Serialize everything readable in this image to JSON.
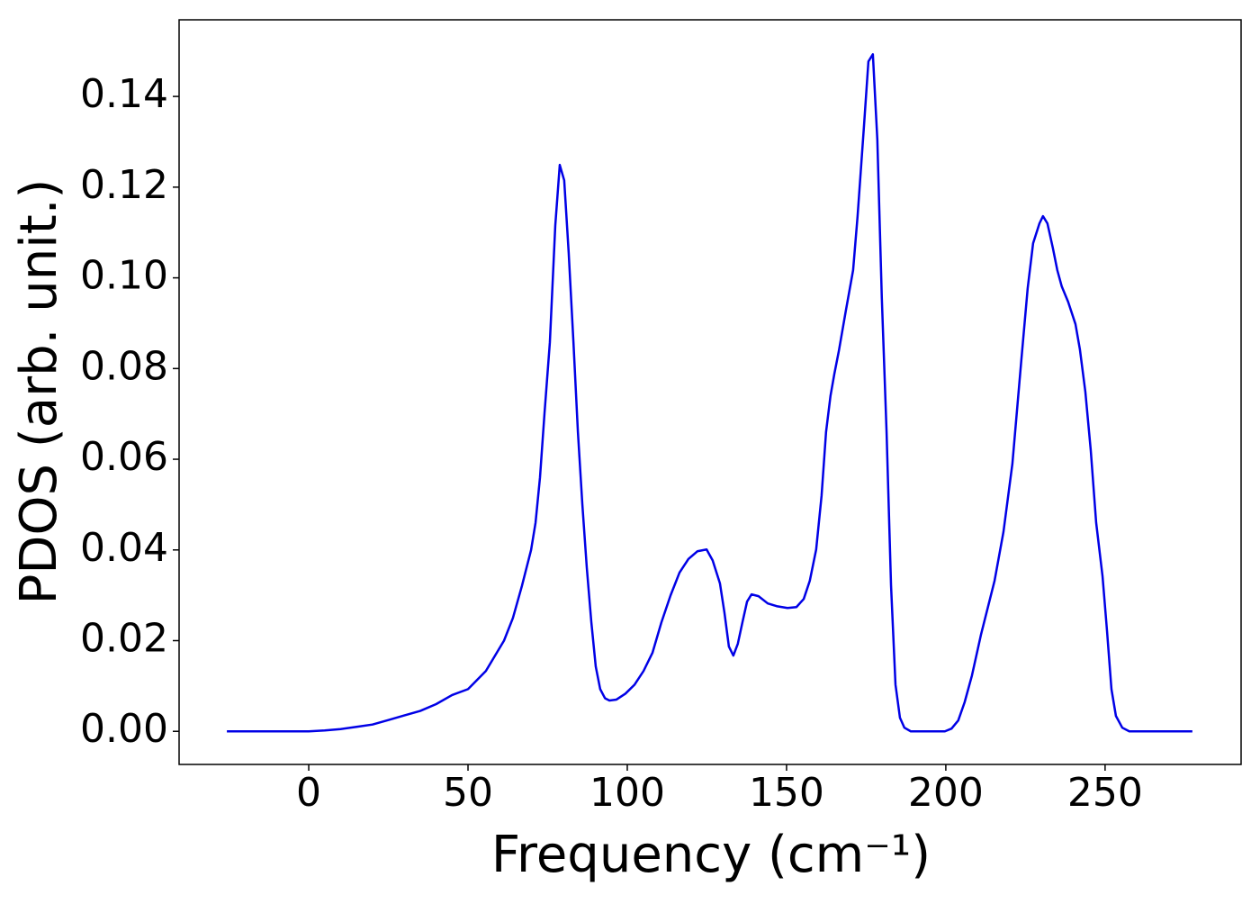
{
  "chart_data": {
    "type": "line",
    "x_label": "Frequency (cm⁻¹)",
    "y_label": "PDOS (arb. unit.)",
    "series": [
      {
        "color": "#0000e6",
        "x": [
          -25.7,
          0,
          5,
          10,
          15,
          20,
          25,
          30,
          35,
          40,
          45,
          50,
          55.6,
          61.3,
          64.1,
          66.9,
          69.8,
          71.2,
          72.6,
          74.0,
          75.7,
          77.4,
          78.8,
          80.2,
          81.6,
          83.1,
          84.5,
          85.9,
          87.3,
          88.7,
          90.1,
          91.5,
          93.0,
          94.4,
          96.6,
          99.4,
          102.3,
          105.1,
          107.9,
          110.7,
          113.6,
          116.4,
          119.2,
          122.0,
          124.9,
          126.8,
          129.1,
          130.5,
          131.9,
          133.3,
          134.7,
          136.2,
          137.6,
          139.0,
          141.2,
          144.1,
          146.9,
          150.3,
          153.1,
          155.4,
          157.3,
          159.3,
          161.0,
          162.4,
          163.8,
          165.0,
          166.4,
          168.6,
          170.9,
          172.3,
          174.3,
          175.7,
          177.1,
          178.5,
          179.9,
          181.4,
          182.8,
          184.2,
          185.6,
          187.0,
          189.0,
          199.7,
          201.8,
          203.9,
          205.9,
          208.2,
          211.0,
          215.3,
          218.1,
          220.9,
          223.7,
          225.7,
          227.4,
          229.4,
          230.5,
          231.9,
          233.6,
          235.0,
          236.4,
          238.4,
          240.7,
          242.1,
          243.8,
          245.5,
          247.2,
          249.2,
          250.6,
          252.0,
          253.4,
          255.4,
          257.6,
          277.4
        ],
        "values": [
          0,
          0,
          0.0002,
          0.0005,
          0.001,
          0.0015,
          0.0025,
          0.0035,
          0.0045,
          0.006,
          0.008,
          0.0093,
          0.0133,
          0.02,
          0.025,
          0.032,
          0.04,
          0.046,
          0.056,
          0.07,
          0.0858,
          0.1116,
          0.1249,
          0.1215,
          0.1056,
          0.0858,
          0.066,
          0.05,
          0.036,
          0.0242,
          0.0143,
          0.0093,
          0.0073,
          0.0068,
          0.007,
          0.0083,
          0.0103,
          0.0133,
          0.0173,
          0.024,
          0.03,
          0.035,
          0.038,
          0.0397,
          0.0401,
          0.0377,
          0.0326,
          0.0262,
          0.0187,
          0.0167,
          0.0193,
          0.0242,
          0.0286,
          0.0302,
          0.0298,
          0.0282,
          0.0276,
          0.0272,
          0.0274,
          0.0292,
          0.0332,
          0.0401,
          0.052,
          0.066,
          0.074,
          0.0788,
          0.0838,
          0.0927,
          0.1017,
          0.1136,
          0.1334,
          0.1477,
          0.1493,
          0.1305,
          0.0957,
          0.066,
          0.0322,
          0.0103,
          0.003,
          0.0008,
          0,
          0,
          0.0006,
          0.0024,
          0.0064,
          0.0123,
          0.0212,
          0.0332,
          0.044,
          0.059,
          0.0818,
          0.0977,
          0.1076,
          0.112,
          0.1136,
          0.112,
          0.1066,
          0.1017,
          0.0981,
          0.0947,
          0.0898,
          0.0842,
          0.0749,
          0.062,
          0.046,
          0.0342,
          0.0222,
          0.0093,
          0.0034,
          0.0008,
          0,
          0
        ]
      }
    ],
    "xlim": [
      -40.7,
      292.7
    ],
    "ylim": [
      -0.0073,
      0.1569
    ],
    "xticks": [
      0,
      50,
      100,
      150,
      200,
      250
    ],
    "yticks": [
      {
        "value": 0,
        "label": "0.00"
      },
      {
        "value": 0.02,
        "label": "0.02"
      },
      {
        "value": 0.04,
        "label": "0.04"
      },
      {
        "value": 0.06,
        "label": "0.06"
      },
      {
        "value": 0.08,
        "label": "0.08"
      },
      {
        "value": 0.1,
        "label": "0.10"
      },
      {
        "value": 0.12,
        "label": "0.12"
      },
      {
        "value": 0.14,
        "label": "0.14"
      }
    ],
    "grid": false
  }
}
